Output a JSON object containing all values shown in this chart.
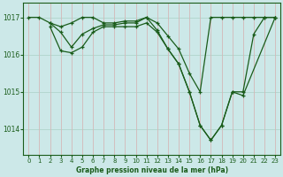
{
  "title": "Graphe pression niveau de la mer (hPa)",
  "bg_color": "#cce8e8",
  "line_color": "#1a5c1a",
  "grid_h_color": "#b0d4cc",
  "grid_v_color": "#d4b8b8",
  "xlim": [
    -0.5,
    23.5
  ],
  "ylim": [
    1013.3,
    1017.4
  ],
  "yticks": [
    1014,
    1015,
    1016,
    1017
  ],
  "xticks": [
    0,
    1,
    2,
    3,
    4,
    5,
    6,
    7,
    8,
    9,
    10,
    11,
    12,
    13,
    14,
    15,
    16,
    17,
    18,
    19,
    20,
    21,
    22,
    23
  ],
  "series": [
    {
      "x": [
        0,
        1,
        2,
        3,
        4,
        5,
        6,
        7,
        8,
        9,
        10,
        11,
        12,
        13,
        14,
        15,
        16,
        17,
        18,
        19,
        20,
        21,
        22,
        23
      ],
      "y": [
        1017.0,
        1017.0,
        1016.85,
        1016.75,
        1016.85,
        1017.0,
        1017.0,
        1016.85,
        1016.85,
        1016.9,
        1016.9,
        1017.0,
        1016.85,
        1016.5,
        1016.15,
        1015.5,
        1015.0,
        1017.0,
        1017.0,
        1017.0,
        1017.0,
        1017.0,
        1017.0,
        1017.0
      ]
    },
    {
      "x": [
        2,
        3,
        4,
        5,
        6,
        7,
        8,
        9,
        10,
        11,
        12,
        13,
        14,
        15,
        16,
        17,
        18,
        19,
        20,
        21,
        22,
        23
      ],
      "y": [
        1016.85,
        1016.6,
        1016.2,
        1016.55,
        1016.7,
        1016.8,
        1016.8,
        1016.85,
        1016.85,
        1017.0,
        1016.65,
        1016.15,
        1015.75,
        1015.0,
        1014.1,
        1013.7,
        1014.1,
        1015.0,
        1015.0,
        1016.55,
        1017.0,
        1017.0
      ]
    },
    {
      "x": [
        2,
        3,
        4,
        5,
        6,
        7,
        8,
        9,
        10,
        11,
        12,
        13,
        14,
        15,
        16,
        17,
        18,
        19,
        20,
        23
      ],
      "y": [
        1016.75,
        1016.1,
        1016.05,
        1016.2,
        1016.6,
        1016.75,
        1016.75,
        1016.75,
        1016.75,
        1016.85,
        1016.6,
        1016.15,
        1015.75,
        1015.0,
        1014.1,
        1013.7,
        1014.1,
        1015.0,
        1014.9,
        1017.0
      ]
    }
  ]
}
